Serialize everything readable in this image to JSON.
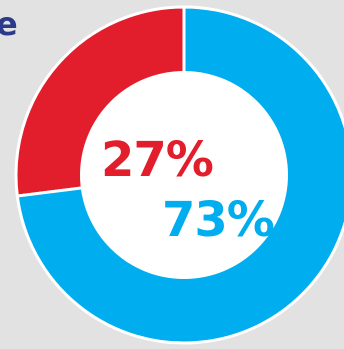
{
  "header": {
    "partial_title": "e"
  },
  "chart_data": {
    "type": "pie",
    "style": "donut",
    "slices": [
      {
        "label": "27%",
        "value": 27,
        "color": "#e21d2c"
      },
      {
        "label": "73%",
        "value": 73,
        "color": "#00adef"
      }
    ],
    "center_color": "#ffffff",
    "ring_separator_color": "#ffffff"
  }
}
